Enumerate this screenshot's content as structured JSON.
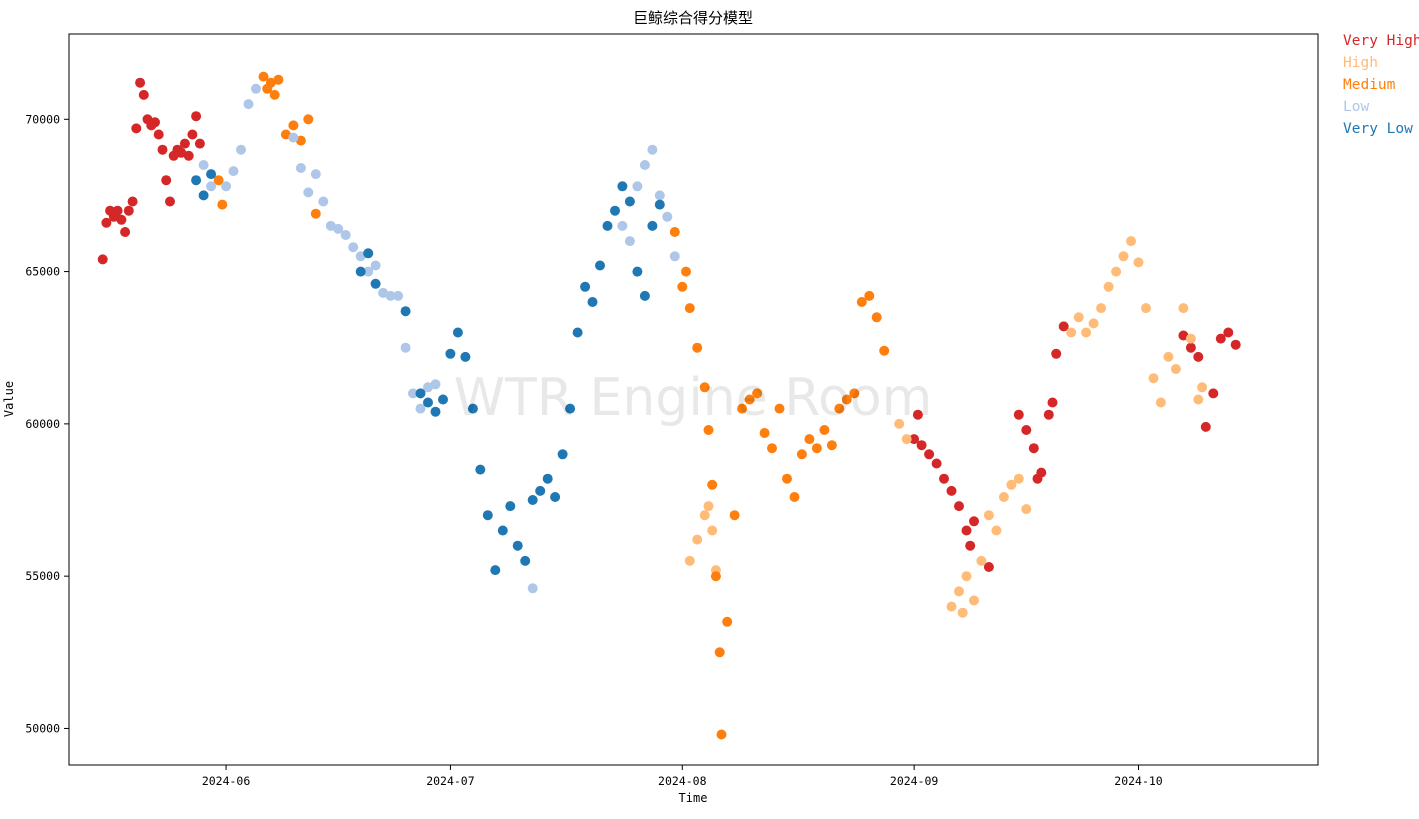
{
  "chart_data": {
    "type": "scatter",
    "title": "巨鲸综合得分模型",
    "xlabel": "Time",
    "ylabel": "Value",
    "watermark": "WTR Engine Room",
    "xlim": [
      "2024-05-11",
      "2024-10-25"
    ],
    "ylim": [
      48800,
      72800
    ],
    "x_ticks": [
      "2024-06",
      "2024-07",
      "2024-08",
      "2024-09",
      "2024-10"
    ],
    "y_ticks": [
      50000,
      55000,
      60000,
      65000,
      70000
    ],
    "legend": [
      {
        "label": "Very High",
        "color": "#d62728"
      },
      {
        "label": "High",
        "color": "#ffbb78"
      },
      {
        "label": "Medium",
        "color": "#ff7f0e"
      },
      {
        "label": "Low",
        "color": "#aec7e8"
      },
      {
        "label": "Very Low",
        "color": "#1f77b4"
      }
    ],
    "series": [
      {
        "name": "Very High",
        "color": "#d62728",
        "points": [
          [
            "2024-05-15T12",
            65400
          ],
          [
            "2024-05-16",
            66600
          ],
          [
            "2024-05-16T12",
            67000
          ],
          [
            "2024-05-17",
            66800
          ],
          [
            "2024-05-17T12",
            67000
          ],
          [
            "2024-05-18",
            66700
          ],
          [
            "2024-05-18T12",
            66300
          ],
          [
            "2024-05-19",
            67000
          ],
          [
            "2024-05-19T12",
            67300
          ],
          [
            "2024-05-20",
            69700
          ],
          [
            "2024-05-20T12",
            71200
          ],
          [
            "2024-05-21",
            70800
          ],
          [
            "2024-05-21T12",
            70000
          ],
          [
            "2024-05-22",
            69800
          ],
          [
            "2024-05-22T12",
            69900
          ],
          [
            "2024-05-23",
            69500
          ],
          [
            "2024-05-23T12",
            69000
          ],
          [
            "2024-05-24",
            68000
          ],
          [
            "2024-05-24T12",
            67300
          ],
          [
            "2024-05-25",
            68800
          ],
          [
            "2024-05-25T12",
            69000
          ],
          [
            "2024-05-26",
            68900
          ],
          [
            "2024-05-26T12",
            69200
          ],
          [
            "2024-05-27",
            68800
          ],
          [
            "2024-05-27T12",
            69500
          ],
          [
            "2024-05-28",
            70100
          ],
          [
            "2024-05-28T12",
            69200
          ],
          [
            "2024-09-01",
            59500
          ],
          [
            "2024-09-01T12",
            60300
          ],
          [
            "2024-09-02",
            59300
          ],
          [
            "2024-09-03",
            59000
          ],
          [
            "2024-09-04",
            58700
          ],
          [
            "2024-09-05",
            58200
          ],
          [
            "2024-09-06",
            57800
          ],
          [
            "2024-09-07",
            57300
          ],
          [
            "2024-09-08",
            56500
          ],
          [
            "2024-09-08T12",
            56000
          ],
          [
            "2024-09-09",
            56800
          ],
          [
            "2024-09-11",
            55300
          ],
          [
            "2024-09-15",
            60300
          ],
          [
            "2024-09-16",
            59800
          ],
          [
            "2024-09-17",
            59200
          ],
          [
            "2024-09-17T12",
            58200
          ],
          [
            "2024-09-18",
            58400
          ],
          [
            "2024-09-19",
            60300
          ],
          [
            "2024-09-19T12",
            60700
          ],
          [
            "2024-09-20",
            62300
          ],
          [
            "2024-09-21",
            63200
          ],
          [
            "2024-10-07",
            62900
          ],
          [
            "2024-10-08",
            62500
          ],
          [
            "2024-10-09",
            62200
          ],
          [
            "2024-10-10",
            59900
          ],
          [
            "2024-10-11",
            61000
          ],
          [
            "2024-10-12",
            62800
          ],
          [
            "2024-10-13",
            63000
          ],
          [
            "2024-10-14",
            62600
          ]
        ]
      },
      {
        "name": "High",
        "color": "#ffbb78",
        "points": [
          [
            "2024-08-02",
            55500
          ],
          [
            "2024-08-03",
            56200
          ],
          [
            "2024-08-04",
            57000
          ],
          [
            "2024-08-04T12",
            57300
          ],
          [
            "2024-08-05",
            56500
          ],
          [
            "2024-08-05T12",
            55200
          ],
          [
            "2024-08-30",
            60000
          ],
          [
            "2024-08-31",
            59500
          ],
          [
            "2024-09-06",
            54000
          ],
          [
            "2024-09-07",
            54500
          ],
          [
            "2024-09-07T12",
            53800
          ],
          [
            "2024-09-08",
            55000
          ],
          [
            "2024-09-09",
            54200
          ],
          [
            "2024-09-10",
            55500
          ],
          [
            "2024-09-11",
            57000
          ],
          [
            "2024-09-12",
            56500
          ],
          [
            "2024-09-13",
            57600
          ],
          [
            "2024-09-14",
            58000
          ],
          [
            "2024-09-15",
            58200
          ],
          [
            "2024-09-16",
            57200
          ],
          [
            "2024-09-22",
            63000
          ],
          [
            "2024-09-23",
            63500
          ],
          [
            "2024-09-24",
            63000
          ],
          [
            "2024-09-25",
            63300
          ],
          [
            "2024-09-26",
            63800
          ],
          [
            "2024-09-27",
            64500
          ],
          [
            "2024-09-28",
            65000
          ],
          [
            "2024-09-29",
            65500
          ],
          [
            "2024-09-30",
            66000
          ],
          [
            "2024-10-01",
            65300
          ],
          [
            "2024-10-02",
            63800
          ],
          [
            "2024-10-03",
            61500
          ],
          [
            "2024-10-04",
            60700
          ],
          [
            "2024-10-05",
            62200
          ],
          [
            "2024-10-06",
            61800
          ],
          [
            "2024-10-07",
            63800
          ],
          [
            "2024-10-08",
            62800
          ],
          [
            "2024-10-09",
            60800
          ],
          [
            "2024-10-09T12",
            61200
          ]
        ]
      },
      {
        "name": "Medium",
        "color": "#ff7f0e",
        "points": [
          [
            "2024-05-31",
            68000
          ],
          [
            "2024-05-31T12",
            67200
          ],
          [
            "2024-06-06",
            71400
          ],
          [
            "2024-06-06T12",
            71000
          ],
          [
            "2024-06-07",
            71200
          ],
          [
            "2024-06-07T12",
            70800
          ],
          [
            "2024-06-08",
            71300
          ],
          [
            "2024-06-09",
            69500
          ],
          [
            "2024-06-10",
            69800
          ],
          [
            "2024-06-11",
            69300
          ],
          [
            "2024-06-12",
            70000
          ],
          [
            "2024-06-13",
            66900
          ],
          [
            "2024-07-31",
            66300
          ],
          [
            "2024-08-01",
            64500
          ],
          [
            "2024-08-01T12",
            65000
          ],
          [
            "2024-08-02",
            63800
          ],
          [
            "2024-08-03",
            62500
          ],
          [
            "2024-08-04",
            61200
          ],
          [
            "2024-08-04T12",
            59800
          ],
          [
            "2024-08-05",
            58000
          ],
          [
            "2024-08-05T12",
            55000
          ],
          [
            "2024-08-06",
            52500
          ],
          [
            "2024-08-06T06",
            49800
          ],
          [
            "2024-08-07",
            53500
          ],
          [
            "2024-08-08",
            57000
          ],
          [
            "2024-08-09",
            60500
          ],
          [
            "2024-08-10",
            60800
          ],
          [
            "2024-08-11",
            61000
          ],
          [
            "2024-08-12",
            59700
          ],
          [
            "2024-08-13",
            59200
          ],
          [
            "2024-08-14",
            60500
          ],
          [
            "2024-08-15",
            58200
          ],
          [
            "2024-08-16",
            57600
          ],
          [
            "2024-08-17",
            59000
          ],
          [
            "2024-08-18",
            59500
          ],
          [
            "2024-08-19",
            59200
          ],
          [
            "2024-08-20",
            59800
          ],
          [
            "2024-08-21",
            59300
          ],
          [
            "2024-08-22",
            60500
          ],
          [
            "2024-08-23",
            60800
          ],
          [
            "2024-08-24",
            61000
          ],
          [
            "2024-08-25",
            64000
          ],
          [
            "2024-08-26",
            64200
          ],
          [
            "2024-08-27",
            63500
          ],
          [
            "2024-08-28",
            62400
          ]
        ]
      },
      {
        "name": "Low",
        "color": "#aec7e8",
        "points": [
          [
            "2024-05-29",
            68500
          ],
          [
            "2024-05-30",
            67800
          ],
          [
            "2024-06-01",
            67800
          ],
          [
            "2024-06-02",
            68300
          ],
          [
            "2024-06-03",
            69000
          ],
          [
            "2024-06-04",
            70500
          ],
          [
            "2024-06-05",
            71000
          ],
          [
            "2024-06-10",
            69400
          ],
          [
            "2024-06-11",
            68400
          ],
          [
            "2024-06-12",
            67600
          ],
          [
            "2024-06-13",
            68200
          ],
          [
            "2024-06-14",
            67300
          ],
          [
            "2024-06-15",
            66500
          ],
          [
            "2024-06-16",
            66400
          ],
          [
            "2024-06-17",
            66200
          ],
          [
            "2024-06-18",
            65800
          ],
          [
            "2024-06-19",
            65500
          ],
          [
            "2024-06-20",
            65000
          ],
          [
            "2024-06-21",
            65200
          ],
          [
            "2024-06-22",
            64300
          ],
          [
            "2024-06-23",
            64200
          ],
          [
            "2024-06-24",
            64200
          ],
          [
            "2024-06-25",
            62500
          ],
          [
            "2024-06-26",
            61000
          ],
          [
            "2024-06-27",
            60500
          ],
          [
            "2024-06-28",
            61200
          ],
          [
            "2024-06-29",
            61300
          ],
          [
            "2024-07-12",
            54600
          ],
          [
            "2024-07-24",
            66500
          ],
          [
            "2024-07-25",
            66000
          ],
          [
            "2024-07-26",
            67800
          ],
          [
            "2024-07-27",
            68500
          ],
          [
            "2024-07-28",
            69000
          ],
          [
            "2024-07-29",
            67500
          ],
          [
            "2024-07-30",
            66800
          ],
          [
            "2024-07-31",
            65500
          ]
        ]
      },
      {
        "name": "Very Low",
        "color": "#1f77b4",
        "points": [
          [
            "2024-05-28",
            68000
          ],
          [
            "2024-05-29",
            67500
          ],
          [
            "2024-05-30",
            68200
          ],
          [
            "2024-06-19",
            65000
          ],
          [
            "2024-06-20",
            65600
          ],
          [
            "2024-06-21",
            64600
          ],
          [
            "2024-06-25",
            63700
          ],
          [
            "2024-06-27",
            61000
          ],
          [
            "2024-06-28",
            60700
          ],
          [
            "2024-06-29",
            60400
          ],
          [
            "2024-06-30",
            60800
          ],
          [
            "2024-07-01",
            62300
          ],
          [
            "2024-07-02",
            63000
          ],
          [
            "2024-07-03",
            62200
          ],
          [
            "2024-07-04",
            60500
          ],
          [
            "2024-07-05",
            58500
          ],
          [
            "2024-07-06",
            57000
          ],
          [
            "2024-07-07",
            55200
          ],
          [
            "2024-07-08",
            56500
          ],
          [
            "2024-07-09",
            57300
          ],
          [
            "2024-07-10",
            56000
          ],
          [
            "2024-07-11",
            55500
          ],
          [
            "2024-07-12",
            57500
          ],
          [
            "2024-07-13",
            57800
          ],
          [
            "2024-07-14",
            58200
          ],
          [
            "2024-07-15",
            57600
          ],
          [
            "2024-07-16",
            59000
          ],
          [
            "2024-07-17",
            60500
          ],
          [
            "2024-07-18",
            63000
          ],
          [
            "2024-07-19",
            64500
          ],
          [
            "2024-07-20",
            64000
          ],
          [
            "2024-07-21",
            65200
          ],
          [
            "2024-07-22",
            66500
          ],
          [
            "2024-07-23",
            67000
          ],
          [
            "2024-07-24",
            67800
          ],
          [
            "2024-07-25",
            67300
          ],
          [
            "2024-07-26",
            65000
          ],
          [
            "2024-07-27",
            64200
          ],
          [
            "2024-07-28",
            66500
          ],
          [
            "2024-07-29",
            67200
          ]
        ]
      }
    ]
  }
}
